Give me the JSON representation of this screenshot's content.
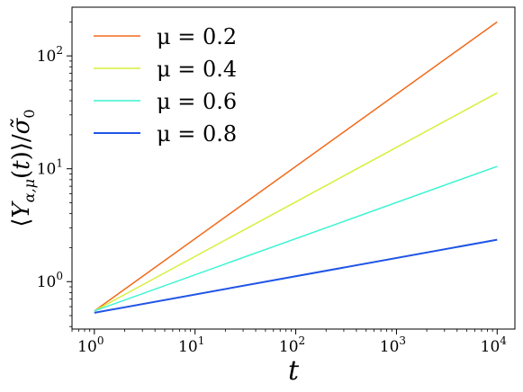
{
  "chart_data": {
    "type": "line",
    "x_scale": "log",
    "y_scale": "log",
    "xlabel": "t",
    "ylabel": "⟨Y_{α,μ}(t)⟩/σ̃₀",
    "xlim": [
      0.6,
      15000
    ],
    "ylim": [
      0.38,
      270
    ],
    "x_ticks": [
      {
        "value": 1,
        "label_base": "10",
        "label_exp": "0"
      },
      {
        "value": 10,
        "label_base": "10",
        "label_exp": "1"
      },
      {
        "value": 100,
        "label_base": "10",
        "label_exp": "2"
      },
      {
        "value": 1000,
        "label_base": "10",
        "label_exp": "3"
      },
      {
        "value": 10000,
        "label_base": "10",
        "label_exp": "4"
      }
    ],
    "y_ticks": [
      {
        "value": 1,
        "label_base": "10",
        "label_exp": "0"
      },
      {
        "value": 10,
        "label_base": "10",
        "label_exp": "1"
      },
      {
        "value": 100,
        "label_base": "10",
        "label_exp": "2"
      }
    ],
    "legend_position": "top-left",
    "grid": false,
    "series": [
      {
        "name": "μ = 0.2",
        "color": "#f26a1b",
        "x": [
          1,
          10000
        ],
        "y": [
          0.55,
          200
        ]
      },
      {
        "name": "μ = 0.4",
        "color": "#d7ef3a",
        "x": [
          1,
          10000
        ],
        "y": [
          0.55,
          47
        ]
      },
      {
        "name": "μ = 0.6",
        "color": "#3cf4d2",
        "x": [
          1,
          10000
        ],
        "y": [
          0.55,
          10.5
        ]
      },
      {
        "name": "μ = 0.8",
        "color": "#1f54e6",
        "x": [
          1,
          10000
        ],
        "y": [
          0.53,
          2.35
        ]
      }
    ]
  }
}
